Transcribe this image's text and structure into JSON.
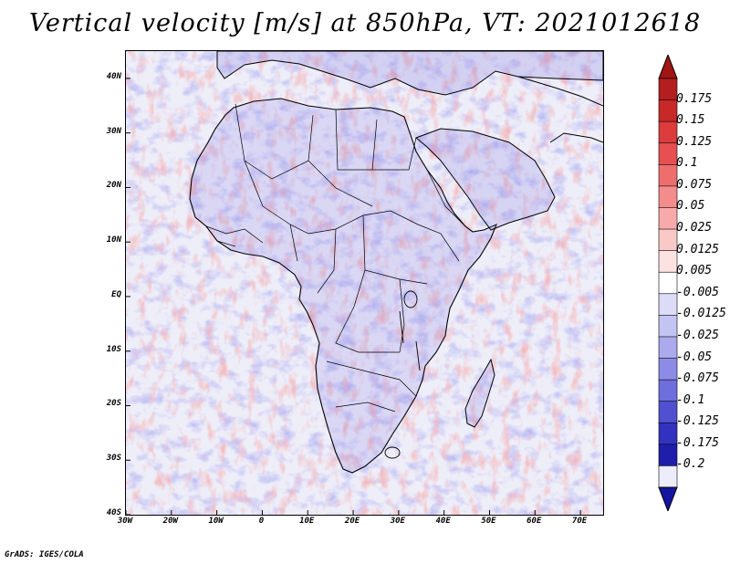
{
  "title": "Vertical velocity [m/s] at 850hPa, VT: 2021012618",
  "credit": "GrADS: IGES/COLA",
  "map": {
    "lon_range": [
      -30,
      75
    ],
    "lat_range": [
      -40,
      45
    ],
    "lat_ticks": [
      {
        "value": 40,
        "label": "40N"
      },
      {
        "value": 30,
        "label": "30N"
      },
      {
        "value": 20,
        "label": "20N"
      },
      {
        "value": 10,
        "label": "10N"
      },
      {
        "value": 0,
        "label": "EQ"
      },
      {
        "value": -10,
        "label": "10S"
      },
      {
        "value": -20,
        "label": "20S"
      },
      {
        "value": -30,
        "label": "30S"
      },
      {
        "value": -40,
        "label": "40S"
      }
    ],
    "lon_ticks": [
      {
        "value": -30,
        "label": "30W"
      },
      {
        "value": -20,
        "label": "20W"
      },
      {
        "value": -10,
        "label": "10W"
      },
      {
        "value": 0,
        "label": "0"
      },
      {
        "value": 10,
        "label": "10E"
      },
      {
        "value": 20,
        "label": "20E"
      },
      {
        "value": 30,
        "label": "30E"
      },
      {
        "value": 40,
        "label": "40E"
      },
      {
        "value": 50,
        "label": "50E"
      },
      {
        "value": 60,
        "label": "60E"
      },
      {
        "value": 70,
        "label": "70E"
      }
    ]
  },
  "colorbar": {
    "units": "m/s",
    "levels": [
      {
        "label": "0.175",
        "color": "#b41e1e"
      },
      {
        "label": "0.15",
        "color": "#c82828"
      },
      {
        "label": "0.125",
        "color": "#dc3c3c"
      },
      {
        "label": "0.1",
        "color": "#e65050"
      },
      {
        "label": "0.075",
        "color": "#ee6e6e"
      },
      {
        "label": "0.05",
        "color": "#f48c8c"
      },
      {
        "label": "0.025",
        "color": "#f8aaaa"
      },
      {
        "label": "0.0125",
        "color": "#fbc8c8"
      },
      {
        "label": "0.005",
        "color": "#fde2e2"
      },
      {
        "label": "-0.005",
        "color": "#ffffff"
      },
      {
        "label": "-0.0125",
        "color": "#dcdcf8"
      },
      {
        "label": "-0.025",
        "color": "#c4c4f2"
      },
      {
        "label": "-0.05",
        "color": "#aaaaec"
      },
      {
        "label": "-0.075",
        "color": "#8c8ce6"
      },
      {
        "label": "-0.1",
        "color": "#6e6edc"
      },
      {
        "label": "-0.125",
        "color": "#5050d0"
      },
      {
        "label": "-0.175",
        "color": "#3232c0"
      },
      {
        "label": "-0.2",
        "color": "#1e1eaa"
      }
    ],
    "top_color": "#a01414",
    "bottom_color": "#1414a0",
    "extra_color": "#ececfa"
  }
}
